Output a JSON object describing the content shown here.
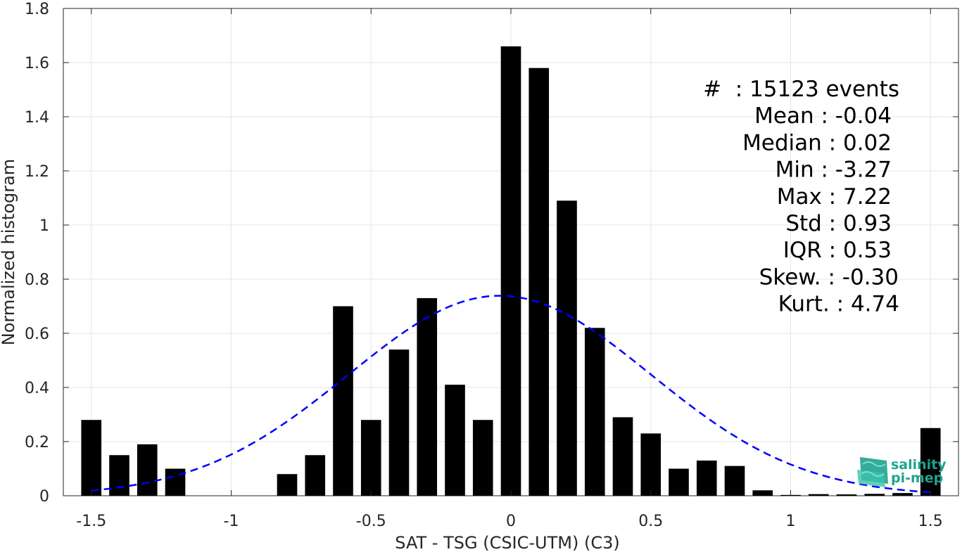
{
  "colors": {
    "bar": "#000000",
    "fit_curve": "#0000ff",
    "grid": "#e6e6e6",
    "axis": "#262626",
    "logo": "#1fa38e"
  },
  "chart_data": {
    "type": "bar",
    "xlabel": "SAT - TSG (CSIC-UTM) (C3)",
    "ylabel": "Normalized histogram",
    "xlim": [
      -1.6,
      1.6
    ],
    "ylim": [
      0,
      1.8
    ],
    "grid": true,
    "x_ticks": [
      "-1.5",
      "-1",
      "-0.5",
      "0",
      "0.5",
      "1",
      "1.5"
    ],
    "y_ticks": [
      "0",
      "0.2",
      "0.4",
      "0.6",
      "0.8",
      "1",
      "1.2",
      "1.4",
      "1.6",
      "1.8"
    ],
    "bins": [
      -1.5,
      -1.4,
      -1.3,
      -1.2,
      -1.1,
      -1.0,
      -0.9,
      -0.8,
      -0.7,
      -0.6,
      -0.5,
      -0.4,
      -0.3,
      -0.2,
      -0.1,
      0.0,
      0.1,
      0.2,
      0.3,
      0.4,
      0.5,
      0.6,
      0.7,
      0.8,
      0.9,
      1.0,
      1.1,
      1.2,
      1.3,
      1.4,
      1.5
    ],
    "values": [
      0.28,
      0.15,
      0.19,
      0.1,
      0.0,
      0.0,
      0.0,
      0.08,
      0.15,
      0.7,
      0.28,
      0.54,
      0.73,
      0.41,
      0.28,
      1.66,
      1.58,
      1.09,
      0.62,
      0.29,
      0.23,
      0.1,
      0.13,
      0.11,
      0.02,
      0.003,
      0.006,
      0.005,
      0.007,
      0.01,
      0.25
    ],
    "fit": {
      "type": "gaussian",
      "mean": -0.04,
      "std": 0.54
    },
    "legend_placement": "top-right",
    "stats": [
      "#  : 15123 events",
      "Mean : -0.04",
      "Median : 0.02",
      "Min : -3.27",
      "Max : 7.22",
      "Std : 0.93",
      "IQR : 0.53",
      "Skew. : -0.30",
      "Kurt. : 4.74"
    ]
  },
  "logo": {
    "line1": "salinity",
    "line2": "pi-mep"
  }
}
